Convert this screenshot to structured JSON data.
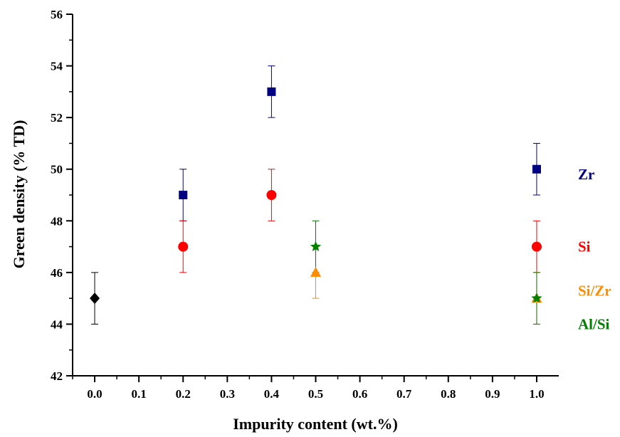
{
  "chart_data": {
    "type": "scatter",
    "xlabel": "Impurity content (wt.%)",
    "ylabel": "Green density (% TD)",
    "xlim": [
      -0.05,
      1.05
    ],
    "ylim": [
      42,
      56
    ],
    "xticks": [
      "0.0",
      "0.1",
      "0.2",
      "0.3",
      "0.4",
      "0.5",
      "0.6",
      "0.7",
      "0.8",
      "0.9",
      "1.0"
    ],
    "yticks": [
      "42",
      "44",
      "46",
      "48",
      "50",
      "52",
      "54",
      "56"
    ],
    "grid": false,
    "legend": "inline labels at right",
    "series": [
      {
        "key": "base",
        "color": "#000000",
        "marker": "diamond",
        "points": [
          {
            "x": 0.0,
            "y": 45,
            "err": 1
          }
        ]
      },
      {
        "key": "zr",
        "name": "Zr",
        "color": "#000080",
        "marker": "square",
        "points": [
          {
            "x": 0.2,
            "y": 49,
            "err": 1
          },
          {
            "x": 0.4,
            "y": 53,
            "err": 1
          },
          {
            "x": 1.0,
            "y": 50,
            "err": 1
          }
        ]
      },
      {
        "key": "si",
        "name": "Si",
        "color": "#ff0000",
        "marker": "circle",
        "points": [
          {
            "x": 0.2,
            "y": 47,
            "err": 1
          },
          {
            "x": 0.4,
            "y": 49,
            "err": 1
          },
          {
            "x": 1.0,
            "y": 47,
            "err": 1
          }
        ]
      },
      {
        "key": "sizr",
        "name": "Si/Zr",
        "color": "#ff8c00",
        "marker": "triangle",
        "points": [
          {
            "x": 0.5,
            "y": 46,
            "err": 1
          },
          {
            "x": 1.0,
            "y": 45,
            "err": 1
          }
        ]
      },
      {
        "key": "alsi",
        "name": "Al/Si",
        "color": "#008000",
        "marker": "star",
        "points": [
          {
            "x": 0.5,
            "y": 47,
            "err": 1
          },
          {
            "x": 1.0,
            "y": 45,
            "err": 1
          }
        ]
      }
    ],
    "series_labels": [
      {
        "text": "Zr",
        "color": "#000080",
        "y": 49.8
      },
      {
        "text": "Si",
        "color": "#ff0000",
        "y": 47
      },
      {
        "text": "Si/Zr",
        "color": "#ff8c00",
        "y": 45.3
      },
      {
        "text": "Al/Si",
        "color": "#008000",
        "y": 44
      }
    ]
  }
}
